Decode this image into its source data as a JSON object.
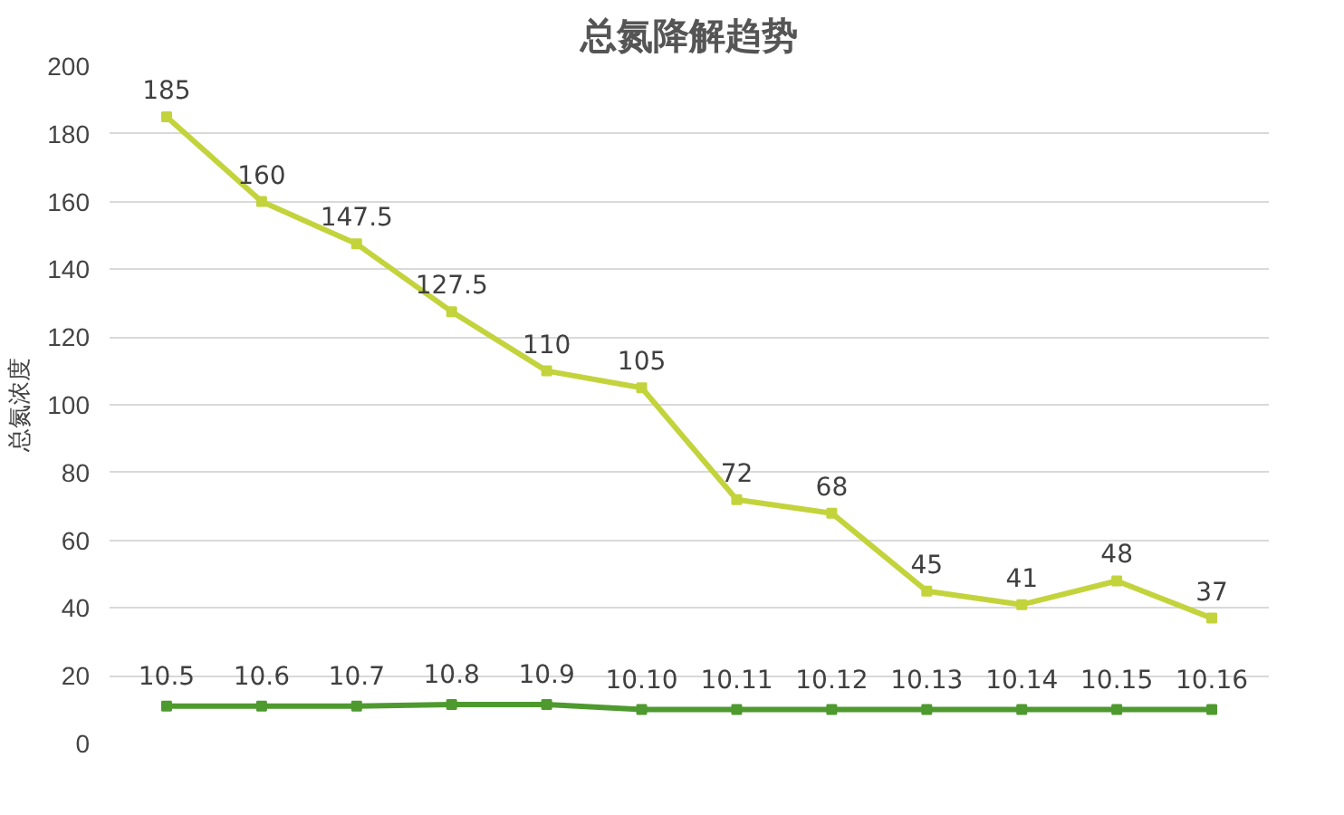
{
  "chart_data": {
    "type": "line",
    "title": "总氮降解趋势",
    "ylabel": "总氮浓度",
    "categories": [
      "10.5",
      "10.6",
      "10.7",
      "10.8",
      "10.9",
      "10.10",
      "10.11",
      "10.12",
      "10.13",
      "10.14",
      "10.15",
      "10.16"
    ],
    "series": [
      {
        "color": "#c3d33c",
        "values": [
          185,
          160,
          147.5,
          127.5,
          110,
          105,
          72,
          68,
          45,
          41,
          48,
          37
        ],
        "value_labels": [
          "185",
          "160",
          "147.5",
          "127.5",
          "110",
          "105",
          "72",
          "68",
          "45",
          "41",
          "48",
          "37"
        ]
      },
      {
        "color": "#4e9a2f",
        "values": [
          11,
          11,
          11,
          11.5,
          11.5,
          10,
          10,
          10,
          10,
          10,
          10,
          10
        ]
      }
    ],
    "ylim": [
      0,
      200
    ],
    "yticks": [
      0,
      20,
      40,
      60,
      80,
      100,
      120,
      140,
      160,
      180,
      200
    ],
    "grid": "y",
    "marker": "square",
    "line_style": "solid",
    "tick_labels": "y"
  }
}
